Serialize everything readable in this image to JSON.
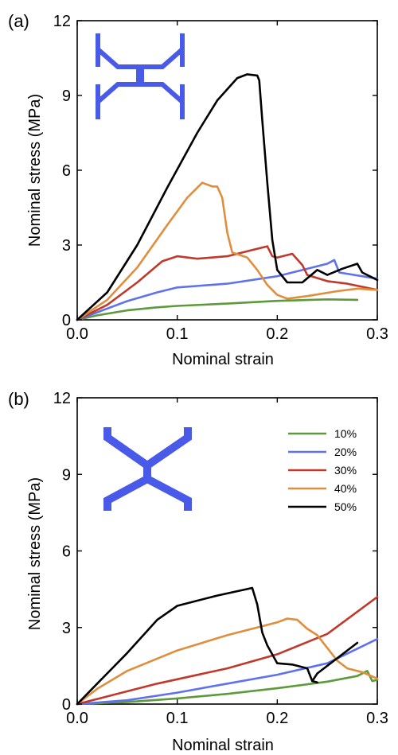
{
  "colors": {
    "s10": "#5c9a3c",
    "s20": "#5f71ec",
    "s30": "#c0392b",
    "s40": "#e08e3c",
    "s50": "#000000",
    "icon": "#4a5ae8"
  },
  "chart_data": [
    {
      "type": "line",
      "panel_label": "(a)",
      "icon": "hourglass-lattice-icon",
      "xlabel": "Nominal strain",
      "ylabel": "Nominal stress (MPa)",
      "xlim": [
        0,
        0.3
      ],
      "ylim": [
        0,
        12
      ],
      "x_ticks": [
        0.0,
        0.1,
        0.2,
        0.3
      ],
      "x_tick_labels": [
        "0.0",
        "0.1",
        "0.2",
        "0.3"
      ],
      "y_ticks": [
        0,
        3,
        6,
        9,
        12
      ],
      "y_tick_labels": [
        "0",
        "3",
        "6",
        "9",
        "12"
      ],
      "series": [
        {
          "key": "s10",
          "points": [
            [
              0,
              0
            ],
            [
              0.02,
              0.18
            ],
            [
              0.05,
              0.38
            ],
            [
              0.08,
              0.5
            ],
            [
              0.1,
              0.56
            ],
            [
              0.15,
              0.65
            ],
            [
              0.2,
              0.76
            ],
            [
              0.25,
              0.82
            ],
            [
              0.28,
              0.8
            ]
          ]
        },
        {
          "key": "s20",
          "points": [
            [
              0,
              0
            ],
            [
              0.02,
              0.3
            ],
            [
              0.05,
              0.75
            ],
            [
              0.08,
              1.1
            ],
            [
              0.1,
              1.3
            ],
            [
              0.15,
              1.45
            ],
            [
              0.2,
              1.75
            ],
            [
              0.25,
              2.25
            ],
            [
              0.257,
              2.4
            ],
            [
              0.262,
              1.9
            ],
            [
              0.3,
              1.65
            ]
          ]
        },
        {
          "key": "s30",
          "points": [
            [
              0,
              0
            ],
            [
              0.03,
              0.6
            ],
            [
              0.06,
              1.5
            ],
            [
              0.085,
              2.35
            ],
            [
              0.1,
              2.55
            ],
            [
              0.12,
              2.45
            ],
            [
              0.15,
              2.55
            ],
            [
              0.175,
              2.8
            ],
            [
              0.19,
              2.95
            ],
            [
              0.195,
              2.55
            ],
            [
              0.2,
              2.5
            ],
            [
              0.215,
              2.65
            ],
            [
              0.225,
              2.2
            ],
            [
              0.23,
              1.8
            ],
            [
              0.25,
              1.55
            ],
            [
              0.27,
              1.45
            ],
            [
              0.3,
              1.2
            ]
          ]
        },
        {
          "key": "s40",
          "points": [
            [
              0,
              0
            ],
            [
              0.03,
              0.8
            ],
            [
              0.06,
              2.1
            ],
            [
              0.09,
              3.8
            ],
            [
              0.11,
              4.9
            ],
            [
              0.125,
              5.5
            ],
            [
              0.135,
              5.35
            ],
            [
              0.14,
              5.35
            ],
            [
              0.145,
              4.9
            ],
            [
              0.15,
              3.5
            ],
            [
              0.155,
              2.7
            ],
            [
              0.17,
              2.5
            ],
            [
              0.18,
              2.0
            ],
            [
              0.19,
              1.4
            ],
            [
              0.2,
              1.0
            ],
            [
              0.21,
              0.85
            ],
            [
              0.23,
              0.95
            ],
            [
              0.26,
              1.15
            ],
            [
              0.28,
              1.25
            ],
            [
              0.3,
              1.2
            ]
          ]
        },
        {
          "key": "s50",
          "points": [
            [
              0,
              0
            ],
            [
              0.03,
              1.1
            ],
            [
              0.06,
              3.0
            ],
            [
              0.09,
              5.3
            ],
            [
              0.12,
              7.5
            ],
            [
              0.14,
              8.8
            ],
            [
              0.16,
              9.7
            ],
            [
              0.17,
              9.85
            ],
            [
              0.18,
              9.8
            ],
            [
              0.182,
              9.6
            ],
            [
              0.185,
              8.0
            ],
            [
              0.19,
              5.5
            ],
            [
              0.195,
              3.2
            ],
            [
              0.2,
              2.0
            ],
            [
              0.21,
              1.5
            ],
            [
              0.225,
              1.5
            ],
            [
              0.24,
              2.0
            ],
            [
              0.25,
              1.8
            ],
            [
              0.265,
              2.05
            ],
            [
              0.28,
              2.25
            ],
            [
              0.285,
              1.9
            ],
            [
              0.3,
              1.6
            ]
          ]
        }
      ]
    },
    {
      "type": "line",
      "panel_label": "(b)",
      "icon": "x-lattice-icon",
      "xlabel": "Nominal strain",
      "ylabel": "Nominal stress (MPa)",
      "xlim": [
        0,
        0.3
      ],
      "ylim": [
        0,
        12
      ],
      "x_ticks": [
        0.0,
        0.1,
        0.2,
        0.3
      ],
      "x_tick_labels": [
        "0.0",
        "0.1",
        "0.2",
        "0.3"
      ],
      "y_ticks": [
        0,
        3,
        6,
        9,
        12
      ],
      "y_tick_labels": [
        "0",
        "3",
        "6",
        "9",
        "12"
      ],
      "legend_position": "top-right",
      "legend": [
        {
          "key": "s10",
          "label": "10%"
        },
        {
          "key": "s20",
          "label": "20%"
        },
        {
          "key": "s30",
          "label": "30%"
        },
        {
          "key": "s40",
          "label": "40%"
        },
        {
          "key": "s50",
          "label": "50%"
        }
      ],
      "series": [
        {
          "key": "s10",
          "points": [
            [
              0,
              0
            ],
            [
              0.05,
              0.08
            ],
            [
              0.1,
              0.22
            ],
            [
              0.15,
              0.4
            ],
            [
              0.2,
              0.62
            ],
            [
              0.25,
              0.88
            ],
            [
              0.28,
              1.1
            ],
            [
              0.29,
              1.3
            ],
            [
              0.295,
              0.9
            ],
            [
              0.3,
              0.95
            ]
          ]
        },
        {
          "key": "s20",
          "points": [
            [
              0,
              0
            ],
            [
              0.05,
              0.15
            ],
            [
              0.1,
              0.45
            ],
            [
              0.15,
              0.8
            ],
            [
              0.2,
              1.15
            ],
            [
              0.25,
              1.6
            ],
            [
              0.3,
              2.55
            ]
          ]
        },
        {
          "key": "s30",
          "points": [
            [
              0,
              0
            ],
            [
              0.03,
              0.3
            ],
            [
              0.08,
              0.8
            ],
            [
              0.15,
              1.4
            ],
            [
              0.2,
              1.95
            ],
            [
              0.25,
              2.75
            ],
            [
              0.3,
              4.2
            ]
          ]
        },
        {
          "key": "s40",
          "points": [
            [
              0,
              0
            ],
            [
              0.02,
              0.6
            ],
            [
              0.05,
              1.3
            ],
            [
              0.1,
              2.1
            ],
            [
              0.15,
              2.7
            ],
            [
              0.2,
              3.2
            ],
            [
              0.21,
              3.35
            ],
            [
              0.22,
              3.3
            ],
            [
              0.23,
              2.95
            ],
            [
              0.24,
              2.7
            ],
            [
              0.25,
              2.2
            ],
            [
              0.26,
              1.7
            ],
            [
              0.27,
              1.4
            ],
            [
              0.285,
              1.25
            ],
            [
              0.3,
              1.0
            ]
          ]
        },
        {
          "key": "s50",
          "points": [
            [
              0,
              0
            ],
            [
              0.02,
              0.8
            ],
            [
              0.05,
              2.0
            ],
            [
              0.08,
              3.3
            ],
            [
              0.1,
              3.85
            ],
            [
              0.14,
              4.25
            ],
            [
              0.175,
              4.55
            ],
            [
              0.18,
              3.9
            ],
            [
              0.185,
              2.8
            ],
            [
              0.19,
              2.3
            ],
            [
              0.2,
              1.6
            ],
            [
              0.215,
              1.55
            ],
            [
              0.23,
              1.4
            ],
            [
              0.235,
              0.9
            ],
            [
              0.24,
              1.2
            ],
            [
              0.26,
              1.8
            ],
            [
              0.28,
              2.4
            ]
          ]
        },
        {
          "key": "s50",
          "points": [
            [
              0.235,
              0.9
            ],
            [
              0.24,
              0.85
            ]
          ]
        }
      ]
    }
  ]
}
